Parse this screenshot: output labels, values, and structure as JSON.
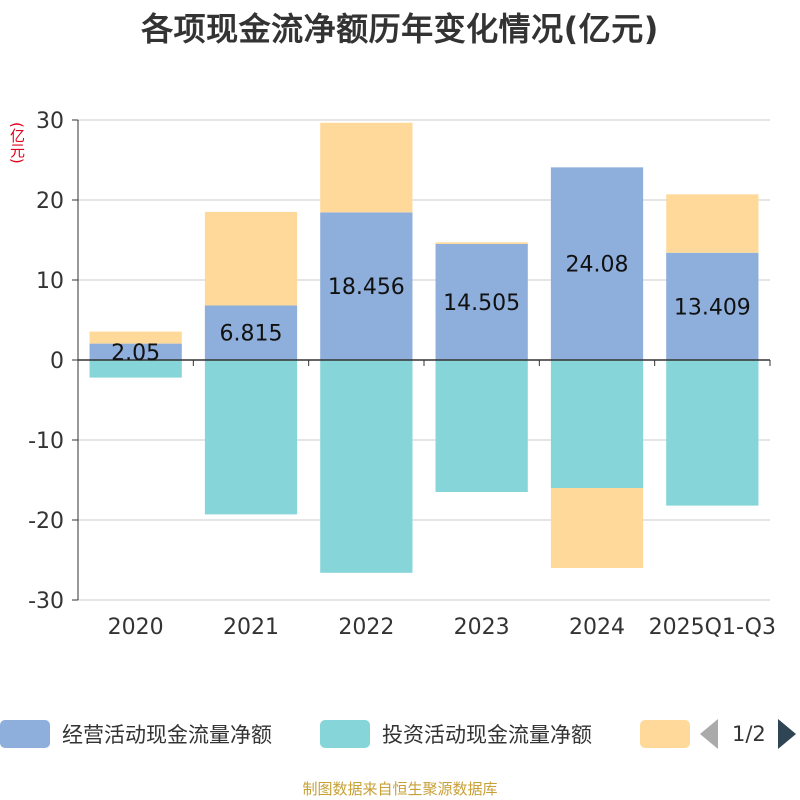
{
  "chart_data": {
    "type": "bar",
    "stacked": true,
    "title": "各项现金流净额历年变化情况(亿元)",
    "ylabel": "(亿元)",
    "ylim": [
      -30,
      30
    ],
    "yticks": [
      30,
      20,
      10,
      0,
      -10,
      -20,
      -30
    ],
    "grid": true,
    "categories": [
      "2020",
      "2021",
      "2022",
      "2023",
      "2024",
      "2025Q1-Q3"
    ],
    "series": [
      {
        "name": "经营活动现金流量净额",
        "color": "#8eaedb",
        "values": [
          2.05,
          6.815,
          18.456,
          14.505,
          24.08,
          13.409
        ],
        "labels": [
          "2.05",
          "6.815",
          "18.456",
          "14.505",
          "24.08",
          "13.409"
        ]
      },
      {
        "name": "投资活动现金流量净额",
        "color": "#86d5d8",
        "values": [
          -2.2,
          -19.3,
          -26.6,
          -16.5,
          -16.0,
          -18.2
        ]
      },
      {
        "name": "",
        "color": "#ffd99a",
        "values": [
          1.5,
          11.7,
          11.2,
          0.2,
          -10.0,
          7.3
        ]
      }
    ],
    "legend": {
      "position": "bottom",
      "page": "1/2"
    }
  },
  "footer": "制图数据来自恒生聚源数据库"
}
